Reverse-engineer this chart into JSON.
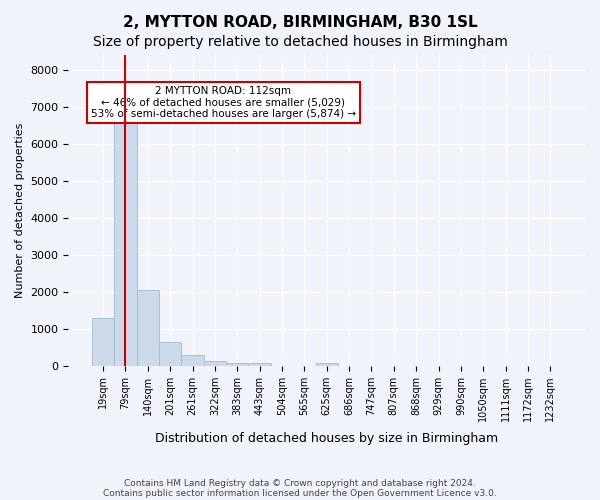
{
  "title": "2, MYTTON ROAD, BIRMINGHAM, B30 1SL",
  "subtitle": "Size of property relative to detached houses in Birmingham",
  "xlabel": "Distribution of detached houses by size in Birmingham",
  "ylabel": "Number of detached properties",
  "footer_line1": "Contains HM Land Registry data © Crown copyright and database right 2024.",
  "footer_line2": "Contains public sector information licensed under the Open Government Licence v3.0.",
  "bins": [
    "19sqm",
    "79sqm",
    "140sqm",
    "201sqm",
    "261sqm",
    "322sqm",
    "383sqm",
    "443sqm",
    "504sqm",
    "565sqm",
    "625sqm",
    "686sqm",
    "747sqm",
    "807sqm",
    "868sqm",
    "929sqm",
    "990sqm",
    "1050sqm",
    "1111sqm",
    "1172sqm",
    "1232sqm"
  ],
  "values": [
    1300,
    6550,
    2050,
    650,
    280,
    130,
    80,
    80,
    0,
    0,
    80,
    0,
    0,
    0,
    0,
    0,
    0,
    0,
    0,
    0,
    0
  ],
  "bar_color": "#ccd9e8",
  "bar_edge_color": "#aabdd4",
  "red_line_x": 1.0,
  "annotation_text": "2 MYTTON ROAD: 112sqm\n← 46% of detached houses are smaller (5,029)\n53% of semi-detached houses are larger (5,874) →",
  "annotation_box_color": "#ffffff",
  "annotation_box_edge_color": "#cc0000",
  "ylim": [
    0,
    8400
  ],
  "yticks": [
    0,
    1000,
    2000,
    3000,
    4000,
    5000,
    6000,
    7000,
    8000
  ],
  "background_color": "#f0f4fa",
  "grid_color": "#ffffff",
  "title_fontsize": 11,
  "subtitle_fontsize": 10
}
